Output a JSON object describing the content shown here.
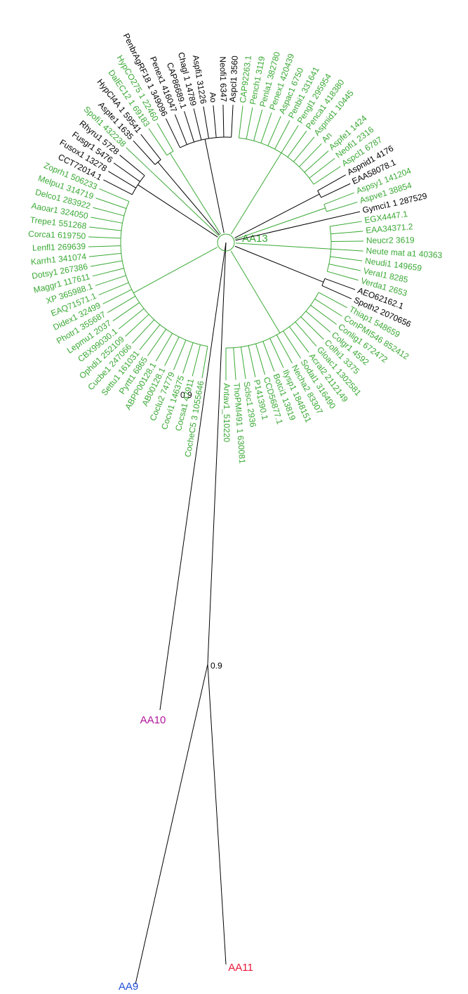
{
  "leaves": [
    {
      "label": "Antav1_510220",
      "color": "#3aa935"
    },
    {
      "label": "ThoPMI491 1 630081",
      "color": "#3aa935"
    },
    {
      "label": "Sclsc1 2936",
      "color": "#3aa935"
    },
    {
      "label": "P141390.1",
      "color": "#3aa935"
    },
    {
      "label": "CCD56877.1",
      "color": "#3aa935"
    },
    {
      "label": "Botci1 13819",
      "color": "#3aa935"
    },
    {
      "label": "Ilysp1 1848151",
      "color": "#3aa935"
    },
    {
      "label": "Necha2 83307",
      "color": "#3aa935"
    },
    {
      "label": "Sodal1 316490",
      "color": "#3aa935"
    },
    {
      "label": "Acral2 2112149",
      "color": "#3aa935"
    },
    {
      "label": "Gloac1 1302581",
      "color": "#3aa935"
    },
    {
      "label": "Colhi1 3375",
      "color": "#3aa935"
    },
    {
      "label": "Colgr1 4592",
      "color": "#3aa935"
    },
    {
      "label": "Conlig1 672472",
      "color": "#3aa935"
    },
    {
      "label": "ConPMI546 852412",
      "color": "#3aa935"
    },
    {
      "label": "Thiap1 548659",
      "color": "#3aa935"
    },
    {
      "label": "Spoth2 2070656",
      "color": "#000000"
    },
    {
      "label": "AEO62162.1",
      "color": "#000000"
    },
    {
      "label": "Verda1 2653",
      "color": "#3aa935"
    },
    {
      "label": "VeraI1 8285",
      "color": "#3aa935"
    },
    {
      "label": "Neudi1 149659",
      "color": "#3aa935"
    },
    {
      "label": "Neute mat a1 40363",
      "color": "#3aa935"
    },
    {
      "label": "Neucr2 3619",
      "color": "#3aa935"
    },
    {
      "label": "EAA34371.2",
      "color": "#3aa935"
    },
    {
      "label": "EGX4447.1",
      "color": "#3aa935"
    },
    {
      "label": "Gymci1 1 287529",
      "color": "#000000"
    },
    {
      "label": "Aspve1 38854",
      "color": "#3aa935"
    },
    {
      "label": "Aspsy1 141204",
      "color": "#3aa935"
    },
    {
      "label": "EAA58078.1",
      "color": "#000000"
    },
    {
      "label": "Aspnid1 4176",
      "color": "#000000"
    },
    {
      "label": "Aspcl1 6787",
      "color": "#3aa935"
    },
    {
      "label": "Neofi1 2316",
      "color": "#3aa935"
    },
    {
      "label": "Aspfe1 1424",
      "color": "#3aa935"
    },
    {
      "label": "An",
      "color": "#3aa935"
    },
    {
      "label": "Aspnid1 10445",
      "color": "#3aa935"
    },
    {
      "label": "Penca1 418380",
      "color": "#3aa935"
    },
    {
      "label": "Pengl1 295954",
      "color": "#3aa935"
    },
    {
      "label": "Penbi1 331641",
      "color": "#3aa935"
    },
    {
      "label": "Aspac1 6750",
      "color": "#3aa935"
    },
    {
      "label": "Penex1 420439",
      "color": "#3aa935"
    },
    {
      "label": "Penla1 382780",
      "color": "#3aa935"
    },
    {
      "label": "Pench1 3119",
      "color": "#3aa935"
    },
    {
      "label": "CAP92263.1",
      "color": "#3aa935"
    },
    {
      "label": "Aspcl1 3560",
      "color": "#000000"
    },
    {
      "label": "Neofi1 6347",
      "color": "#000000"
    },
    {
      "label": "Ao",
      "color": "#000000"
    },
    {
      "label": "Aspfi1 31226",
      "color": "#000000"
    },
    {
      "label": "Chagl 1 14789",
      "color": "#000000"
    },
    {
      "label": "CAP86689.1",
      "color": "#000000"
    },
    {
      "label": "Penex1 416047",
      "color": "#000000"
    },
    {
      "label": "PenbrAgRF18 1 349096",
      "color": "#000000"
    },
    {
      "label": "HypCO275 1 22460",
      "color": "#3aa935"
    },
    {
      "label": "DalEC12 1 69183",
      "color": "#3aa935"
    },
    {
      "label": "HypCl4A 1 59541",
      "color": "#000000"
    },
    {
      "label": "Aspte1 1635",
      "color": "#000000"
    },
    {
      "label": "Spofi1 432238",
      "color": "#3aa935"
    },
    {
      "label": "Rhyru1 5728",
      "color": "#000000"
    },
    {
      "label": "Fusgr1 5476",
      "color": "#000000"
    },
    {
      "label": "Fusox1 13278",
      "color": "#000000"
    },
    {
      "label": "CCT72014.1",
      "color": "#000000"
    },
    {
      "label": "Zoprh1 506233",
      "color": "#3aa935"
    },
    {
      "label": "Melpu1 314719",
      "color": "#3aa935"
    },
    {
      "label": "Delco1 283922",
      "color": "#3aa935"
    },
    {
      "label": "Aaoar1 324050",
      "color": "#3aa935"
    },
    {
      "label": "Trepe1 551268",
      "color": "#3aa935"
    },
    {
      "label": "Corca1 619750",
      "color": "#3aa935"
    },
    {
      "label": "Lenfl1 269639",
      "color": "#3aa935"
    },
    {
      "label": "Karrh1 341074",
      "color": "#3aa935"
    },
    {
      "label": "Dotsy1 267386",
      "color": "#3aa935"
    },
    {
      "label": "Maggr1 117611",
      "color": "#3aa935"
    },
    {
      "label": "XP 365988.1",
      "color": "#3aa935"
    },
    {
      "label": "EAQ71571.1",
      "color": "#3aa935"
    },
    {
      "label": "Didex1 32499",
      "color": "#3aa935"
    },
    {
      "label": "Photr1 355687",
      "color": "#3aa935"
    },
    {
      "label": "Lepmu1 2037",
      "color": "#3aa935"
    },
    {
      "label": "CBX99030.1",
      "color": "#3aa935"
    },
    {
      "label": "Ophdi1 252109",
      "color": "#3aa935"
    },
    {
      "label": "Cucbe1 247066",
      "color": "#3aa935"
    },
    {
      "label": "Settu1 161031",
      "color": "#3aa935"
    },
    {
      "label": "Pyrtt1 6865",
      "color": "#3aa935"
    },
    {
      "label": "ABPP00128.1",
      "color": "#3aa935"
    },
    {
      "label": "AB00128.1",
      "color": "#3aa935"
    },
    {
      "label": "Coclu2 74779",
      "color": "#3aa935"
    },
    {
      "label": "Cocvi1 146375",
      "color": "#3aa935"
    },
    {
      "label": "Cocsa1 47911",
      "color": "#3aa935"
    },
    {
      "label": "CocheC5 3 1055646",
      "color": "#3aa935"
    }
  ],
  "clade_label": {
    "label": "AA13",
    "color": "#3aa935"
  },
  "support_labels": [
    "0.9",
    "0.9"
  ],
  "outgroups": [
    {
      "label": "AA10",
      "color": "#b0179b"
    },
    {
      "label": "AA11",
      "color": "#e8173a"
    },
    {
      "label": "AA9",
      "color": "#1f4fd6"
    }
  ]
}
